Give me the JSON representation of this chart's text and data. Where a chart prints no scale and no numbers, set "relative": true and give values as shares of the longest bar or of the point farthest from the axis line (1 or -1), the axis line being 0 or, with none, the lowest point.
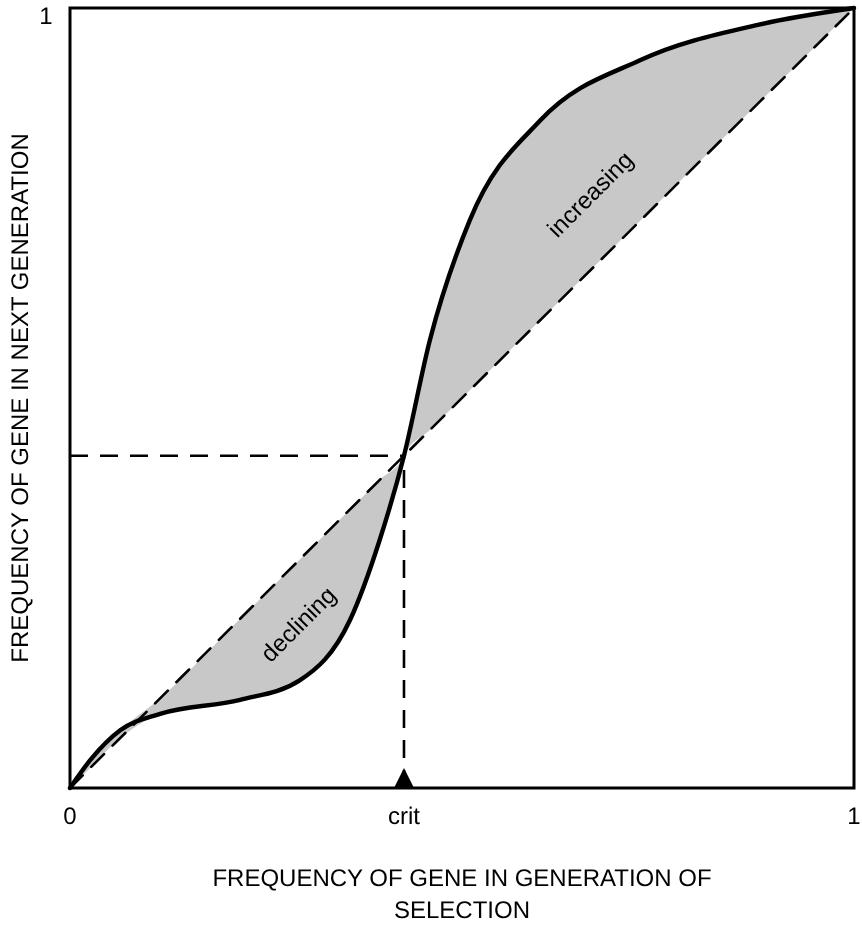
{
  "chart_data": {
    "type": "line",
    "xlabel": "FREQUENCY OF GENE IN GENERATION OF SELECTION",
    "ylabel": "FREQUENCY OF GENE IN NEXT GENERATION",
    "xlim": [
      0,
      1
    ],
    "relative": true,
    "xticks": [
      {
        "value": 0,
        "label": "0"
      },
      1
    ],
    "series": [
      {
        "color": "#000000",
        "line_style": "solid",
        "x": [
          0,
          0.026,
          0.064,
          0.115,
          0.217,
          0.293,
          0.357,
          0.395,
          0.426,
          0.459,
          0.51,
          0.6,
          0.727,
          0.88,
          1
        ],
        "values": [
          0,
          0.036,
          0.074,
          0.095,
          0.113,
          0.138,
          0.215,
          0.318,
          0.426,
          0.574,
          0.728,
          0.856,
          0.933,
          0.979,
          1
        ],
        "lower": [
          0,
          0.026,
          0.064,
          0.095,
          0.113,
          0.138,
          0.215,
          0.318,
          0.426,
          0.459,
          0.51,
          0.6,
          0.727,
          0.88,
          1
        ],
        "upper": [
          0,
          0.036,
          0.074,
          0.115,
          0.217,
          0.293,
          0.357,
          0.395,
          0.426,
          0.574,
          0.728,
          0.856,
          0.933,
          0.979,
          1
        ]
      },
      {
        "color": "#000000",
        "line_style": "dashed",
        "x": [
          0,
          1
        ],
        "values": [
          0,
          1
        ]
      }
    ],
    "ref_lines": [
      {
        "axis": "x",
        "value": 0.426,
        "line_style": "dashed",
        "label": "crit"
      },
      {
        "axis": "y",
        "value": 0.426,
        "line_style": "dashed"
      }
    ],
    "annotations": [
      "declining",
      "increasing",
      "1"
    ],
    "marker": "none"
  }
}
